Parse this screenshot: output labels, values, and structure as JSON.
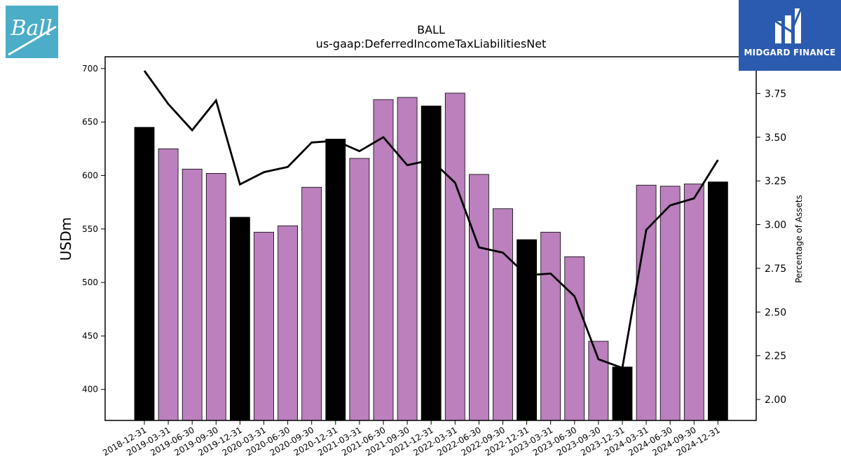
{
  "header": {
    "title": "BALL",
    "subtitle": "us-gaap:DeferredIncomeTaxLiabilitiesNet"
  },
  "logos": {
    "left": {
      "text": "Ball",
      "color": "#4badc8"
    },
    "right": {
      "text": "MIDGARD FINANCE",
      "color": "#2b5bb0"
    }
  },
  "colors": {
    "year_end_bar": "#000000",
    "quarter_bar": "#bb80bd",
    "line": "#000000"
  },
  "chart_data": {
    "type": "bar",
    "categories": [
      "2018-12-31",
      "2019-03-31",
      "2019-06-30",
      "2019-09-30",
      "2019-12-31",
      "2020-03-31",
      "2020-06-30",
      "2020-09-30",
      "2020-12-31",
      "2021-03-31",
      "2021-06-30",
      "2021-09-30",
      "2021-12-31",
      "2022-03-31",
      "2022-06-30",
      "2022-09-30",
      "2022-12-31",
      "2023-03-31",
      "2023-06-30",
      "2023-09-30",
      "2023-12-31",
      "2024-03-31",
      "2024-06-30",
      "2024-09-30",
      "2024-12-31"
    ],
    "series": [
      {
        "axis": "left",
        "type": "bar",
        "values": [
          645,
          625,
          606,
          602,
          561,
          547,
          553,
          589,
          634,
          616,
          671,
          673,
          665,
          677,
          601,
          569,
          540,
          547,
          524,
          445,
          421,
          591,
          590,
          592,
          594
        ]
      },
      {
        "axis": "right",
        "type": "line",
        "values": [
          3.88,
          3.69,
          3.54,
          3.71,
          3.23,
          3.3,
          3.33,
          3.47,
          3.48,
          3.42,
          3.5,
          3.34,
          3.37,
          3.24,
          2.87,
          2.84,
          2.71,
          2.72,
          2.59,
          2.23,
          2.18,
          2.97,
          3.11,
          3.15,
          3.37
        ]
      }
    ],
    "year_end_flags": [
      true,
      false,
      false,
      false,
      true,
      false,
      false,
      false,
      true,
      false,
      false,
      false,
      true,
      false,
      false,
      false,
      true,
      false,
      false,
      false,
      true,
      false,
      false,
      false,
      true
    ],
    "ylabel": "USDm",
    "y2label": "Percentage of Assets",
    "ylim": [
      371,
      711
    ],
    "y2lim": [
      1.88,
      3.96
    ],
    "yticks": [
      400,
      450,
      500,
      550,
      600,
      650,
      700
    ],
    "y2ticks": [
      "2.00",
      "2.25",
      "2.50",
      "2.75",
      "3.00",
      "3.25",
      "3.50",
      "3.75"
    ]
  }
}
